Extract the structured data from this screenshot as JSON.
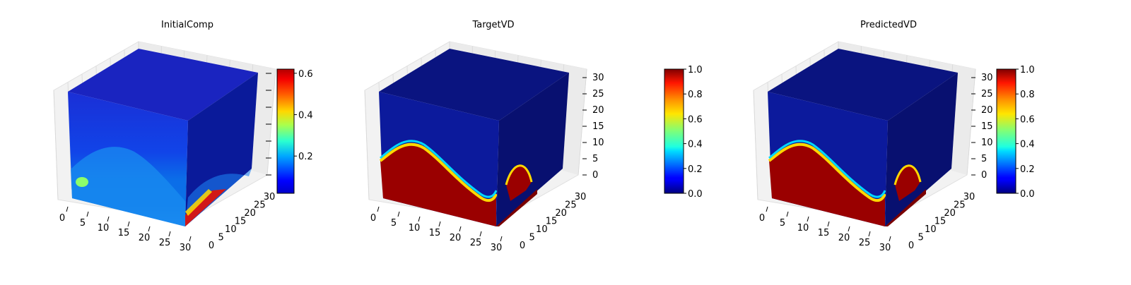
{
  "figure": {
    "background": "#ffffff"
  },
  "chart_data": [
    {
      "type": "voxel-3d",
      "title": "InitialComp",
      "axes_ticks": {
        "x": [
          "0",
          "5",
          "10",
          "15",
          "20",
          "25",
          "30"
        ],
        "y": [
          "0",
          "5",
          "10",
          "15",
          "20",
          "25",
          "30"
        ],
        "z": []
      },
      "colorbar": {
        "colormap": "jet",
        "range": [
          0.02,
          0.62
        ],
        "ticks": [
          0.2,
          0.4,
          0.6
        ],
        "tick_labels": [
          "0.2",
          "0.4",
          "0.6"
        ]
      }
    },
    {
      "type": "voxel-3d",
      "title": "TargetVD",
      "axes_ticks": {
        "x": [
          "0",
          "5",
          "10",
          "15",
          "20",
          "25",
          "30"
        ],
        "y": [
          "0",
          "5",
          "10",
          "15",
          "20",
          "25",
          "30"
        ],
        "z": [
          "0",
          "5",
          "10",
          "15",
          "20",
          "25",
          "30"
        ]
      },
      "colorbar": {
        "colormap": "jet",
        "range": [
          0.0,
          1.0
        ],
        "ticks": [
          0.0,
          0.2,
          0.4,
          0.6,
          0.8,
          1.0
        ],
        "tick_labels": [
          "0.0",
          "0.2",
          "0.4",
          "0.6",
          "0.8",
          "1.0"
        ]
      }
    },
    {
      "type": "voxel-3d",
      "title": "PredictedVD",
      "axes_ticks": {
        "x": [
          "0",
          "5",
          "10",
          "15",
          "20",
          "25",
          "30"
        ],
        "y": [
          "0",
          "5",
          "10",
          "15",
          "20",
          "25",
          "30"
        ],
        "z": [
          "0",
          "5",
          "10",
          "15",
          "20",
          "25",
          "30"
        ]
      },
      "colorbar": {
        "colormap": "jet",
        "range": [
          0.0,
          1.0
        ],
        "ticks": [
          0.0,
          0.2,
          0.4,
          0.6,
          0.8,
          1.0
        ],
        "tick_labels": [
          "0.0",
          "0.2",
          "0.4",
          "0.6",
          "0.8",
          "1.0"
        ]
      }
    }
  ]
}
